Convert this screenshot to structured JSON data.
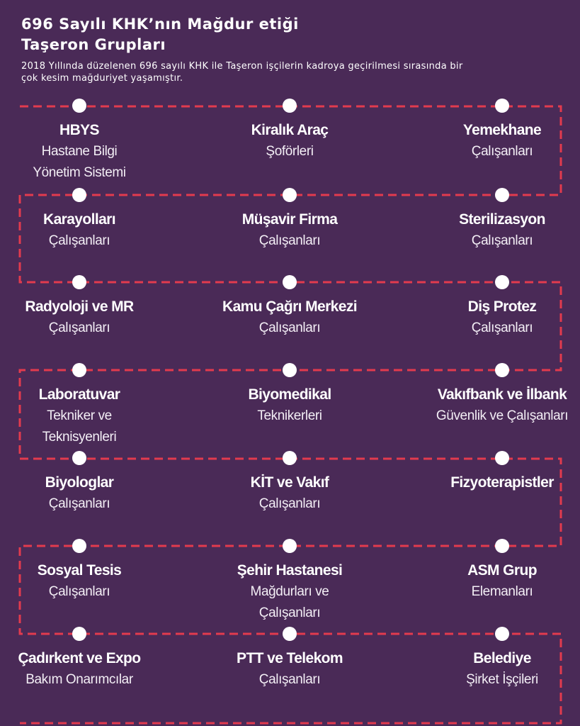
{
  "title_lines": [
    "696 Sayılı KHK’nın Mağdur etiği",
    "Taşeron Grupları"
  ],
  "subtitle_lines": [
    "2018 Yıllında düzelenen 696 sayılı KHK ile Taşeron işçilerin kadroya geçirilmesi sırasında bir",
    "çok kesim mağduriyet yaşamıştır."
  ],
  "colors": {
    "background": "#4a2a57",
    "path": "#e23b4e",
    "dot": "#ffffff",
    "text": "#ffffff"
  },
  "groups": [
    {
      "name": "HBYS",
      "desc": [
        "Hastane Bilgi",
        "Yönetim Sistemi"
      ]
    },
    {
      "name": "Kiralık Araç",
      "desc": [
        "Şoförleri"
      ]
    },
    {
      "name": "Yemekhane",
      "desc": [
        "Çalışanları"
      ]
    },
    {
      "name": "Karayolları",
      "desc": [
        "Çalışanları"
      ]
    },
    {
      "name": "Müşavir Firma",
      "desc": [
        "Çalışanları"
      ]
    },
    {
      "name": "Sterilizasyon",
      "desc": [
        "Çalışanları"
      ]
    },
    {
      "name": "Radyoloji ve MR",
      "desc": [
        "Çalışanları"
      ]
    },
    {
      "name": "Kamu Çağrı Merkezi",
      "desc": [
        "Çalışanları"
      ]
    },
    {
      "name": "Diş Protez",
      "desc": [
        "Çalışanları"
      ]
    },
    {
      "name": "Laboratuvar",
      "desc": [
        "Tekniker ve",
        "Teknisyenleri"
      ]
    },
    {
      "name": "Biyomedikal",
      "desc": [
        "Teknikerleri"
      ]
    },
    {
      "name": "Vakıfbank ve İlbank",
      "desc": [
        "Güvenlik ve Çalışanları"
      ]
    },
    {
      "name": "Biyologlar",
      "desc": [
        "Çalışanları"
      ]
    },
    {
      "name": "KİT ve Vakıf",
      "desc": [
        "Çalışanları"
      ]
    },
    {
      "name": "Fizyoterapistler",
      "desc": []
    },
    {
      "name": "Sosyal Tesis",
      "desc": [
        "Çalışanları"
      ]
    },
    {
      "name": "Şehir Hastanesi",
      "desc": [
        "Mağdurları ve",
        "Çalışanları"
      ]
    },
    {
      "name": "ASM Grup",
      "desc": [
        "Elemanları"
      ]
    },
    {
      "name": "Çadırkent ve Expo",
      "desc": [
        "Bakım Onarımcılar"
      ]
    },
    {
      "name": "PTT ve Telekom",
      "desc": [
        "Çalışanları"
      ]
    },
    {
      "name": "Belediye",
      "desc": [
        "Şirket İşçileri"
      ]
    }
  ]
}
